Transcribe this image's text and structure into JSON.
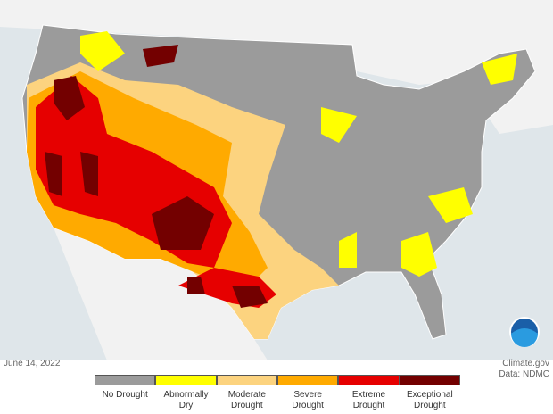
{
  "date": "June 14, 2022",
  "credit": "Climate.gov",
  "source": "Data: NDMC",
  "legend": [
    {
      "label": "No Drought",
      "color": "#9b9b9b"
    },
    {
      "label": "Abnormally Dry",
      "color": "#ffff00"
    },
    {
      "label": "Moderate Drought",
      "color": "#fcd37f"
    },
    {
      "label": "Severe Drought",
      "color": "#ffaa00"
    },
    {
      "label": "Extreme Drought",
      "color": "#e60000"
    },
    {
      "label": "Exceptional Drought",
      "color": "#730000"
    }
  ]
}
